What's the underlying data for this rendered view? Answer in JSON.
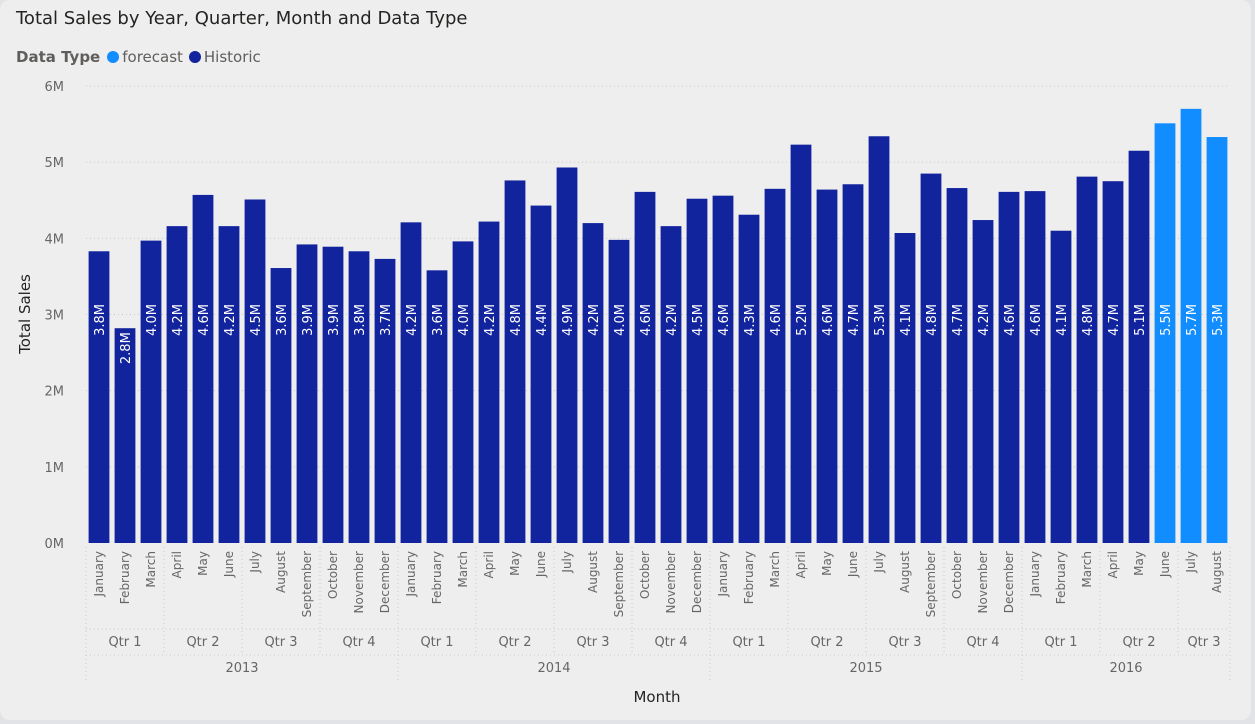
{
  "colors": {
    "forecast": "#118dff",
    "historic": "#12239e"
  },
  "chart_data": {
    "type": "bar",
    "title": "Total Sales by Year, Quarter, Month and Data Type",
    "xlabel": "Month",
    "ylabel": "Total Sales",
    "ylim": [
      0,
      6000000
    ],
    "yticks": [
      "0M",
      "1M",
      "2M",
      "3M",
      "4M",
      "5M",
      "6M"
    ],
    "grid": true,
    "legend": {
      "title": "Data Type",
      "placement": "top-left",
      "entries": [
        {
          "name": "forecast",
          "color": "#118dff"
        },
        {
          "name": "Historic",
          "color": "#12239e"
        }
      ]
    },
    "years": [
      {
        "label": "2013",
        "count": 12
      },
      {
        "label": "2014",
        "count": 12
      },
      {
        "label": "2015",
        "count": 12
      },
      {
        "label": "2016",
        "count": 8
      }
    ],
    "quarters": [
      {
        "label": "Qtr 1",
        "count": 3
      },
      {
        "label": "Qtr 2",
        "count": 3
      },
      {
        "label": "Qtr 3",
        "count": 3
      },
      {
        "label": "Qtr 4",
        "count": 3
      },
      {
        "label": "Qtr 1",
        "count": 3
      },
      {
        "label": "Qtr 2",
        "count": 3
      },
      {
        "label": "Qtr 3",
        "count": 3
      },
      {
        "label": "Qtr 4",
        "count": 3
      },
      {
        "label": "Qtr 1",
        "count": 3
      },
      {
        "label": "Qtr 2",
        "count": 3
      },
      {
        "label": "Qtr 3",
        "count": 3
      },
      {
        "label": "Qtr 4",
        "count": 3
      },
      {
        "label": "Qtr 1",
        "count": 3
      },
      {
        "label": "Qtr 2",
        "count": 3
      },
      {
        "label": "Qtr 3",
        "count": 2
      }
    ],
    "bars": [
      {
        "month": "January",
        "value": 3830000,
        "label": "3.8M",
        "type": "Historic"
      },
      {
        "month": "February",
        "value": 2820000,
        "label": "2.8M",
        "type": "Historic"
      },
      {
        "month": "March",
        "value": 3970000,
        "label": "4.0M",
        "type": "Historic"
      },
      {
        "month": "April",
        "value": 4160000,
        "label": "4.2M",
        "type": "Historic"
      },
      {
        "month": "May",
        "value": 4570000,
        "label": "4.6M",
        "type": "Historic"
      },
      {
        "month": "June",
        "value": 4160000,
        "label": "4.2M",
        "type": "Historic"
      },
      {
        "month": "July",
        "value": 4510000,
        "label": "4.5M",
        "type": "Historic"
      },
      {
        "month": "August",
        "value": 3610000,
        "label": "3.6M",
        "type": "Historic"
      },
      {
        "month": "September",
        "value": 3920000,
        "label": "3.9M",
        "type": "Historic"
      },
      {
        "month": "October",
        "value": 3890000,
        "label": "3.9M",
        "type": "Historic"
      },
      {
        "month": "November",
        "value": 3830000,
        "label": "3.8M",
        "type": "Historic"
      },
      {
        "month": "December",
        "value": 3730000,
        "label": "3.7M",
        "type": "Historic"
      },
      {
        "month": "January",
        "value": 4210000,
        "label": "4.2M",
        "type": "Historic"
      },
      {
        "month": "February",
        "value": 3580000,
        "label": "3.6M",
        "type": "Historic"
      },
      {
        "month": "March",
        "value": 3960000,
        "label": "4.0M",
        "type": "Historic"
      },
      {
        "month": "April",
        "value": 4220000,
        "label": "4.2M",
        "type": "Historic"
      },
      {
        "month": "May",
        "value": 4760000,
        "label": "4.8M",
        "type": "Historic"
      },
      {
        "month": "June",
        "value": 4430000,
        "label": "4.4M",
        "type": "Historic"
      },
      {
        "month": "July",
        "value": 4930000,
        "label": "4.9M",
        "type": "Historic"
      },
      {
        "month": "August",
        "value": 4200000,
        "label": "4.2M",
        "type": "Historic"
      },
      {
        "month": "September",
        "value": 3980000,
        "label": "4.0M",
        "type": "Historic"
      },
      {
        "month": "October",
        "value": 4610000,
        "label": "4.6M",
        "type": "Historic"
      },
      {
        "month": "November",
        "value": 4160000,
        "label": "4.2M",
        "type": "Historic"
      },
      {
        "month": "December",
        "value": 4520000,
        "label": "4.5M",
        "type": "Historic"
      },
      {
        "month": "January",
        "value": 4560000,
        "label": "4.6M",
        "type": "Historic"
      },
      {
        "month": "February",
        "value": 4310000,
        "label": "4.3M",
        "type": "Historic"
      },
      {
        "month": "March",
        "value": 4650000,
        "label": "4.6M",
        "type": "Historic"
      },
      {
        "month": "April",
        "value": 5230000,
        "label": "5.2M",
        "type": "Historic"
      },
      {
        "month": "May",
        "value": 4640000,
        "label": "4.6M",
        "type": "Historic"
      },
      {
        "month": "June",
        "value": 4710000,
        "label": "4.7M",
        "type": "Historic"
      },
      {
        "month": "July",
        "value": 5340000,
        "label": "5.3M",
        "type": "Historic"
      },
      {
        "month": "August",
        "value": 4070000,
        "label": "4.1M",
        "type": "Historic"
      },
      {
        "month": "September",
        "value": 4850000,
        "label": "4.8M",
        "type": "Historic"
      },
      {
        "month": "October",
        "value": 4660000,
        "label": "4.7M",
        "type": "Historic"
      },
      {
        "month": "November",
        "value": 4240000,
        "label": "4.2M",
        "type": "Historic"
      },
      {
        "month": "December",
        "value": 4610000,
        "label": "4.6M",
        "type": "Historic"
      },
      {
        "month": "January",
        "value": 4620000,
        "label": "4.6M",
        "type": "Historic"
      },
      {
        "month": "February",
        "value": 4100000,
        "label": "4.1M",
        "type": "Historic"
      },
      {
        "month": "March",
        "value": 4810000,
        "label": "4.8M",
        "type": "Historic"
      },
      {
        "month": "April",
        "value": 4750000,
        "label": "4.7M",
        "type": "Historic"
      },
      {
        "month": "May",
        "value": 5150000,
        "label": "5.1M",
        "type": "Historic"
      },
      {
        "month": "June",
        "value": 5510000,
        "label": "5.5M",
        "type": "forecast"
      },
      {
        "month": "July",
        "value": 5700000,
        "label": "5.7M",
        "type": "forecast"
      },
      {
        "month": "August",
        "value": 5330000,
        "label": "5.3M",
        "type": "forecast"
      }
    ]
  }
}
